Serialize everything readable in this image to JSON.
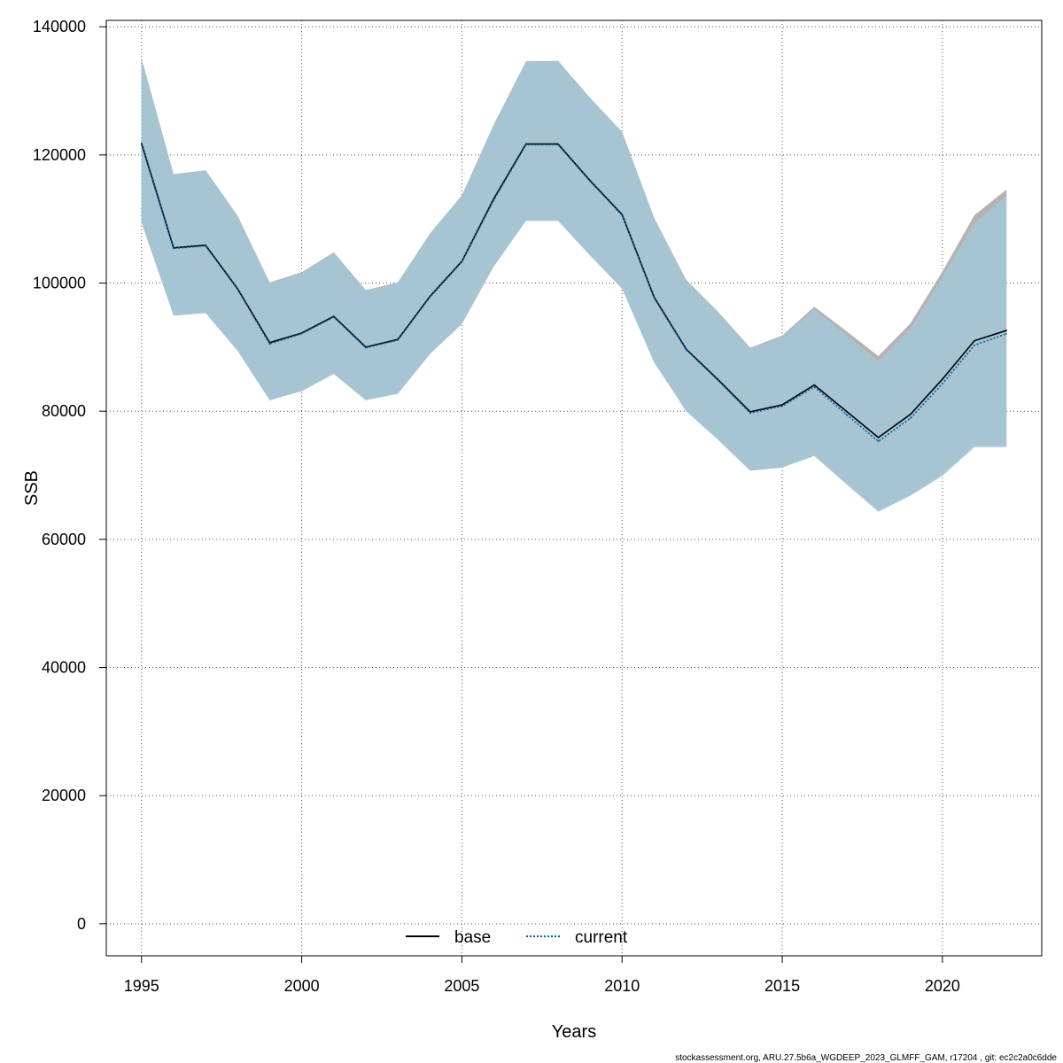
{
  "chart_data": {
    "type": "line",
    "xlabel": "Years",
    "ylabel": "SSB",
    "xlim": [
      1993.9,
      2023.1
    ],
    "ylim": [
      -5000,
      141000
    ],
    "xticks": [
      1995,
      2000,
      2005,
      2010,
      2015,
      2020
    ],
    "yticks": [
      0,
      20000,
      40000,
      60000,
      80000,
      100000,
      120000,
      140000
    ],
    "grid": true,
    "legend_position": "bottom-center",
    "x": [
      1995,
      1996,
      1997,
      1998,
      1999,
      2000,
      2001,
      2002,
      2003,
      2004,
      2005,
      2006,
      2007,
      2008,
      2009,
      2010,
      2011,
      2012,
      2013,
      2014,
      2015,
      2016,
      2017,
      2018,
      2019,
      2020,
      2021,
      2022
    ],
    "series": [
      {
        "name": "base",
        "color": "#000000",
        "dash": "solid",
        "values": [
          121800,
          105500,
          105900,
          99100,
          90700,
          92200,
          94800,
          90000,
          91200,
          97900,
          103400,
          113200,
          121700,
          121700,
          116000,
          110700,
          97800,
          89700,
          84900,
          79900,
          81000,
          84100,
          80000,
          75900,
          79500,
          85000,
          91000,
          92600
        ],
        "lower": [
          109500,
          95000,
          95400,
          89500,
          81800,
          83200,
          85900,
          81800,
          82800,
          89000,
          93700,
          102700,
          109800,
          109800,
          104400,
          99200,
          87700,
          80100,
          75600,
          70800,
          71300,
          73200,
          68900,
          64600,
          67100,
          70300,
          74800,
          74700
        ],
        "upper": [
          135100,
          117000,
          117600,
          110500,
          100100,
          101700,
          104800,
          98900,
          100100,
          107700,
          113700,
          124800,
          134600,
          134700,
          128900,
          123600,
          110200,
          100500,
          95500,
          89900,
          91800,
          96300,
          92500,
          88600,
          93700,
          101800,
          110600,
          114600
        ],
        "band_color": "#b9b0b0"
      },
      {
        "name": "current",
        "color": "#005f99",
        "dash": "dotted",
        "values": [
          121600,
          105400,
          105800,
          99000,
          90500,
          92100,
          94700,
          89900,
          91100,
          97800,
          103300,
          113000,
          121600,
          121600,
          115900,
          110600,
          97700,
          89600,
          84800,
          79700,
          80800,
          83800,
          79500,
          75300,
          78900,
          84300,
          90300,
          92100
        ],
        "lower": [
          109400,
          94900,
          95300,
          89400,
          81700,
          83100,
          85800,
          81700,
          82700,
          88900,
          93600,
          102600,
          109700,
          109700,
          104300,
          99100,
          87600,
          80000,
          75500,
          70700,
          71200,
          73000,
          68600,
          64300,
          66800,
          69900,
          74400,
          74400
        ],
        "upper": [
          135000,
          116900,
          117500,
          110400,
          100000,
          101600,
          104700,
          98800,
          100000,
          107600,
          113600,
          124700,
          134500,
          134600,
          128800,
          123500,
          110100,
          100400,
          95400,
          89700,
          91600,
          95900,
          91900,
          87800,
          92900,
          101000,
          109400,
          113600
        ],
        "band_color": "#a5c5d6"
      }
    ]
  },
  "footer": "stockassessment.org, ARU.27.5b6a_WGDEEP_2023_GLMFF_GAM, r17204 , git: ec2c2a0c6dde"
}
